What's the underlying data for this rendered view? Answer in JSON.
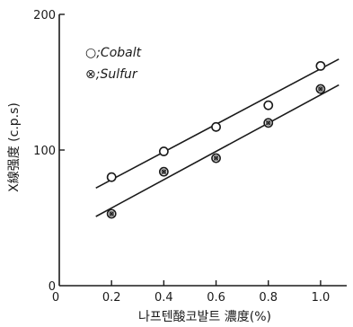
{
  "chart_data": {
    "type": "scatter",
    "xlabel": "나프텐酸코발트 濃度(%)",
    "ylabel": "X線强度 (c.p.s)",
    "xlim": [
      0,
      1.1
    ],
    "ylim": [
      0,
      200
    ],
    "x_ticks": [
      "0",
      "0.2",
      "0.4",
      "0.6",
      "0.8",
      "1.0"
    ],
    "y_ticks": [
      "0",
      "100",
      "200"
    ],
    "legend_position": "top-left",
    "series": [
      {
        "name": "Cobalt",
        "legend_label": "○;Cobalt",
        "marker": "open-circle",
        "x": [
          0.2,
          0.4,
          0.6,
          0.8,
          1.0
        ],
        "y": [
          80,
          99,
          117,
          133,
          162
        ],
        "fit": {
          "x": [
            0.14,
            1.07
          ],
          "y": [
            72,
            167
          ]
        }
      },
      {
        "name": "Sulfur",
        "legend_label": "⊗;Sulfur",
        "marker": "shaded-circle",
        "x": [
          0.2,
          0.4,
          0.6,
          0.8,
          1.0
        ],
        "y": [
          53,
          84,
          94,
          120,
          145
        ],
        "fit": {
          "x": [
            0.14,
            1.07
          ],
          "y": [
            51,
            148
          ]
        }
      }
    ]
  }
}
